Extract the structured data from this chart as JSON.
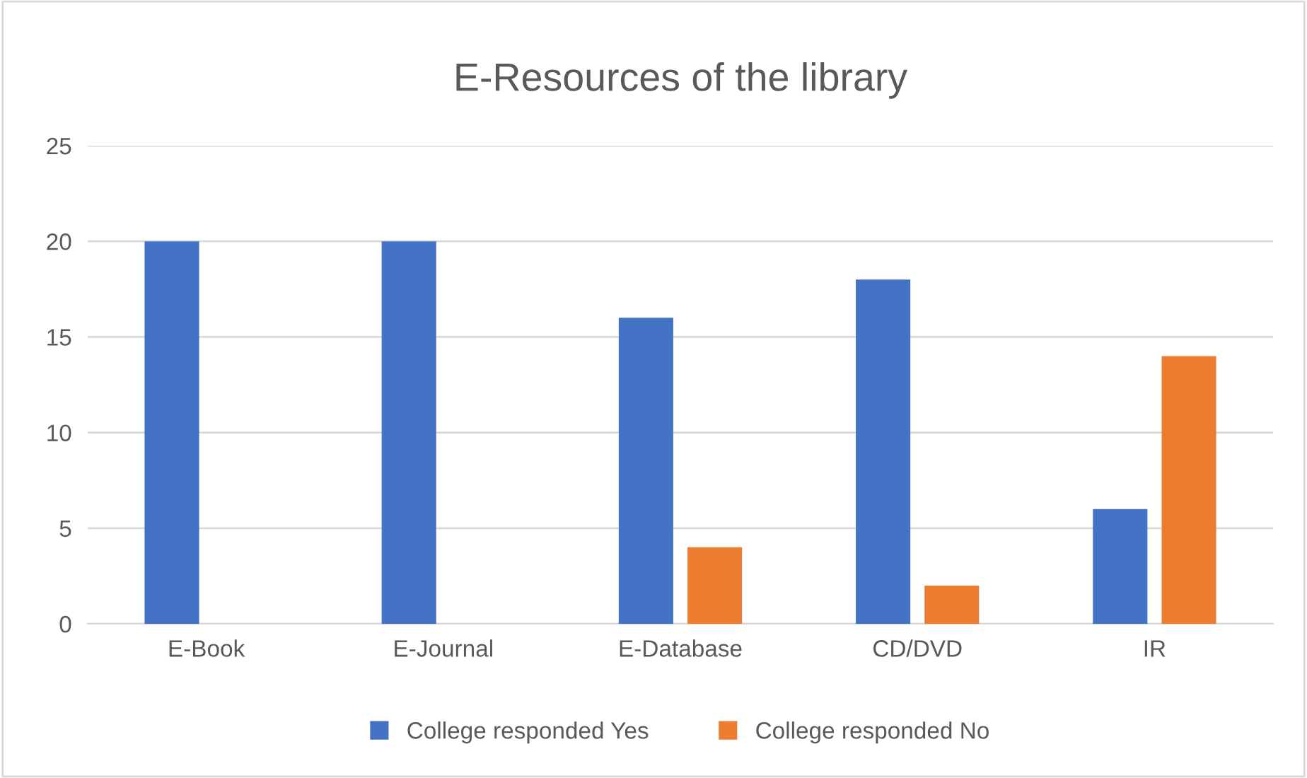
{
  "chart_data": {
    "type": "bar",
    "title": "E-Resources of the library",
    "categories": [
      "E-Book",
      "E-Journal",
      "E-Database",
      "CD/DVD",
      "IR"
    ],
    "series": [
      {
        "name": "College responded Yes",
        "color": "#4472c4",
        "values": [
          20,
          20,
          16,
          18,
          6
        ]
      },
      {
        "name": "College responded No",
        "color": "#ed7d31",
        "values": [
          0,
          0,
          4,
          2,
          14
        ]
      }
    ],
    "ylim": [
      0,
      25
    ],
    "yticks": [
      0,
      5,
      10,
      15,
      20,
      25
    ],
    "grid": "y",
    "legend": "bottom"
  }
}
